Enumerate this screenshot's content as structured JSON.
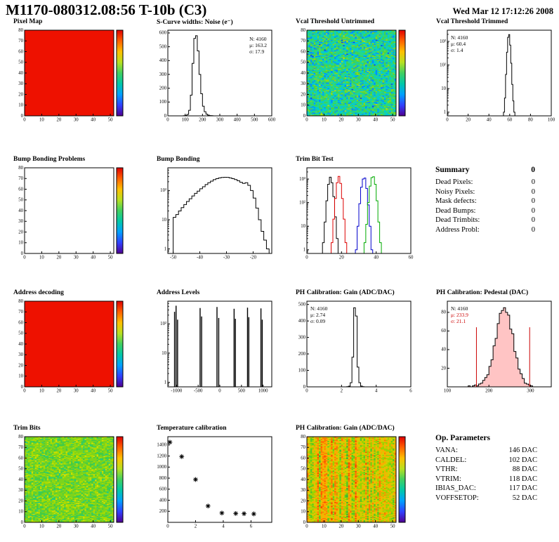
{
  "header": {
    "title": "M1170-080312.08:56 T-10b (C3)",
    "datetime": "Wed Mar 12 17:12:26 2008"
  },
  "summary": {
    "title": "Summary",
    "total": "0",
    "rows": [
      {
        "label": "Dead Pixels:",
        "value": "0"
      },
      {
        "label": "Noisy Pixels:",
        "value": "0"
      },
      {
        "label": "Mask defects:",
        "value": "0"
      },
      {
        "label": "Dead Bumps:",
        "value": "0"
      },
      {
        "label": "Dead Trimbits:",
        "value": "0"
      },
      {
        "label": "Address Probl:",
        "value": "0"
      }
    ]
  },
  "op_parameters": {
    "title": "Op. Parameters",
    "rows": [
      {
        "label": "VANA:",
        "value": "146 DAC"
      },
      {
        "label": "CALDEL:",
        "value": "102 DAC"
      },
      {
        "label": "VTHR:",
        "value": "88 DAC"
      },
      {
        "label": "VTRIM:",
        "value": "118 DAC"
      },
      {
        "label": "IBIAS_DAC:",
        "value": "117 DAC"
      },
      {
        "label": "VOFFSETOP:",
        "value": "52 DAC"
      }
    ]
  },
  "palette_rainbow": [
    "#500090",
    "#3040ff",
    "#00a0ff",
    "#00c8a8",
    "#40d060",
    "#b8e020",
    "#ffc000",
    "#ff6000",
    "#e00000"
  ],
  "chart_data": [
    {
      "id": "pixel-map",
      "type": "heatmap",
      "title": "Pixel Map",
      "xlim": [
        0,
        52
      ],
      "ylim": [
        0,
        80
      ],
      "xticks": [
        0,
        10,
        20,
        30,
        40,
        50
      ],
      "yticks": [
        0,
        10,
        20,
        30,
        40,
        50,
        60,
        70,
        80
      ],
      "colorbar": true,
      "fill": "uniform",
      "color": "#ee1100",
      "nx": 52,
      "ny": 80
    },
    {
      "id": "scurve-noise",
      "type": "histogram",
      "title": "S-Curve widths: Noise (e⁻)",
      "xlim": [
        0,
        600
      ],
      "ylim": [
        0,
        620
      ],
      "xticks": [
        0,
        100,
        200,
        300,
        400,
        500,
        600
      ],
      "yticks": [
        0,
        100,
        200,
        300,
        400,
        500,
        600
      ],
      "ylog": false,
      "line_color": "#000000",
      "bins": {
        "x0": 90,
        "dx": 10,
        "counts": [
          1,
          3,
          10,
          40,
          150,
          380,
          560,
          580,
          470,
          300,
          160,
          70,
          30,
          12,
          5,
          2,
          1
        ]
      },
      "stats": [
        {
          "text": "N: 4160",
          "color": "#000000"
        },
        {
          "text": "μ: 163.2",
          "color": "#000000"
        },
        {
          "text": "σ: 17.9",
          "color": "#000000"
        }
      ]
    },
    {
      "id": "vcal-untrimmed",
      "type": "heatmap",
      "title": "Vcal Threshold Untrimmed",
      "xlim": [
        0,
        52
      ],
      "ylim": [
        0,
        80
      ],
      "xticks": [
        0,
        10,
        20,
        30,
        40,
        50
      ],
      "yticks": [
        0,
        10,
        20,
        30,
        40,
        50,
        60,
        70,
        80
      ],
      "colorbar": true,
      "fill": "random",
      "seed": 11,
      "base": 0.1,
      "noise": 0.8,
      "nx": 52,
      "ny": 80,
      "palette": [
        "#1840e0",
        "#0090ff",
        "#00c8d8",
        "#20d890",
        "#44d44c",
        "#86d81e",
        "#c8e000"
      ]
    },
    {
      "id": "vcal-trimmed",
      "type": "histogram",
      "title": "Vcal Threshold Trimmed",
      "xlim": [
        0,
        100
      ],
      "ylim": [
        0.7,
        3000
      ],
      "xticks": [
        0,
        20,
        40,
        60,
        80,
        100
      ],
      "yticks": [
        1,
        10,
        100,
        1000
      ],
      "ylog": true,
      "line_color": "#000000",
      "bins": {
        "x0": 54,
        "dx": 1,
        "counts": [
          1,
          4,
          40,
          350,
          1500,
          1950,
          700,
          120,
          15,
          3,
          1
        ]
      },
      "stats": [
        {
          "text": "N: 4160",
          "color": "#000000"
        },
        {
          "text": "μ: 60.4",
          "color": "#000000"
        },
        {
          "text": "σ:  1.4",
          "color": "#000000"
        }
      ]
    },
    {
      "id": "bump-problems",
      "type": "heatmap",
      "title": "Bump Bonding Problems",
      "xlim": [
        0,
        52
      ],
      "ylim": [
        0,
        80
      ],
      "xticks": [
        0,
        10,
        20,
        30,
        40,
        50
      ],
      "yticks": [
        0,
        10,
        20,
        30,
        40,
        50,
        60,
        70,
        80
      ],
      "colorbar": true,
      "fill": "none",
      "nx": 52,
      "ny": 80
    },
    {
      "id": "bump-bonding",
      "type": "histogram",
      "title": "Bump Bonding",
      "xlim": [
        -52,
        -13
      ],
      "ylim": [
        0.7,
        600
      ],
      "xticks": [
        -50,
        -40,
        -30,
        -20
      ],
      "yticks": [
        1,
        10,
        100
      ],
      "ylog": true,
      "line_color": "#000000",
      "bins": {
        "x0": -50,
        "dx": 1,
        "counts": [
          12,
          15,
          20,
          26,
          33,
          42,
          52,
          65,
          80,
          95,
          115,
          135,
          160,
          185,
          210,
          235,
          255,
          270,
          280,
          285,
          283,
          270,
          255,
          238,
          215,
          192,
          175,
          185,
          150,
          100,
          55,
          25,
          10,
          4,
          2,
          1
        ]
      }
    },
    {
      "id": "trim-bit-test",
      "type": "multi_histogram",
      "title": "Trim Bit Test",
      "xlim": [
        0,
        60
      ],
      "ylim": [
        0.7,
        3000
      ],
      "xticks": [
        0,
        20,
        40,
        60
      ],
      "yticks": [
        1,
        10,
        100,
        1000
      ],
      "ylog": true,
      "series": [
        {
          "color": "#000000",
          "x0": 9,
          "dx": 1,
          "counts": [
            2,
            15,
            120,
            600,
            1200,
            700,
            180,
            25,
            3
          ]
        },
        {
          "color": "#dd0000",
          "x0": 14,
          "dx": 1,
          "counts": [
            2,
            20,
            150,
            700,
            1300,
            650,
            150,
            20,
            2
          ]
        },
        {
          "color": "#0000cc",
          "x0": 28,
          "dx": 1,
          "counts": [
            1,
            10,
            90,
            450,
            1000,
            1100,
            400,
            80,
            10,
            1
          ]
        },
        {
          "color": "#00aa00",
          "x0": 33,
          "dx": 1,
          "counts": [
            2,
            12,
            100,
            500,
            1150,
            1250,
            600,
            120,
            15,
            2
          ]
        }
      ]
    },
    {
      "id": "address-decoding",
      "type": "heatmap",
      "title": "Address decoding",
      "xlim": [
        0,
        52
      ],
      "ylim": [
        0,
        80
      ],
      "xticks": [
        0,
        10,
        20,
        30,
        40,
        50
      ],
      "yticks": [
        0,
        10,
        20,
        30,
        40,
        50,
        60,
        70,
        80
      ],
      "colorbar": true,
      "fill": "uniform",
      "color": "#ee1100",
      "nx": 52,
      "ny": 80
    },
    {
      "id": "address-levels",
      "type": "spikes",
      "title": "Address Levels",
      "xlim": [
        -1200,
        1200
      ],
      "ylim": [
        0.7,
        600
      ],
      "xticks": [
        -1000,
        -500,
        0,
        500,
        1000
      ],
      "yticks": [
        1,
        10,
        100
      ],
      "ylog": true,
      "spikes": [
        [
          -1045,
          260
        ],
        [
          -1010,
          420
        ],
        [
          -975,
          140
        ],
        [
          -455,
          350
        ],
        [
          -420,
          180
        ],
        [
          -65,
          380
        ],
        [
          -25,
          160
        ],
        [
          330,
          330
        ],
        [
          360,
          150
        ],
        [
          640,
          360
        ],
        [
          670,
          170
        ],
        [
          950,
          340
        ],
        [
          980,
          140
        ]
      ]
    },
    {
      "id": "ph-gain-hist",
      "type": "histogram",
      "title": "PH Calibration: Gain (ADC/DAC)",
      "xlim": [
        0,
        6
      ],
      "ylim": [
        0,
        520
      ],
      "xticks": [
        0,
        2,
        4,
        6
      ],
      "yticks": [
        0,
        100,
        200,
        300,
        400,
        500
      ],
      "ylog": false,
      "line_color": "#000000",
      "bins": {
        "x0": 2.3,
        "dx": 0.1,
        "counts": [
          1,
          4,
          25,
          180,
          480,
          430,
          120,
          25,
          5,
          1
        ]
      },
      "stats": [
        {
          "text": "N: 4160",
          "color": "#000000"
        },
        {
          "text": "μ: 2.74",
          "color": "#000000"
        },
        {
          "text": "σ: 0.09",
          "color": "#000000"
        }
      ]
    },
    {
      "id": "ph-pedestal",
      "type": "histogram",
      "title": "PH Calibration: Pedestal (DAC)",
      "xlim": [
        100,
        350
      ],
      "ylim": [
        0,
        92
      ],
      "xticks": [
        100,
        200,
        300
      ],
      "yticks": [
        20,
        40,
        60,
        80
      ],
      "ylog": false,
      "line_color": "#000000",
      "fill_color": "rgba(255,60,60,0.30)",
      "vlines": [
        {
          "x": 170,
          "h": 64,
          "color": "#cc0000"
        },
        {
          "x": 298,
          "h": 64,
          "color": "#cc0000"
        }
      ],
      "bins": {
        "x0": 150,
        "dx": 5,
        "counts": [
          1,
          0,
          1,
          2,
          1,
          3,
          4,
          7,
          10,
          13,
          22,
          29,
          44,
          52,
          68,
          79,
          82,
          85,
          80,
          77,
          62,
          57,
          38,
          31,
          19,
          14,
          9,
          4,
          3,
          2,
          1,
          0
        ]
      },
      "stats": [
        {
          "text": "N: 4160",
          "color": "#000000"
        },
        {
          "text": "μ: 233.9",
          "color": "#cc0000"
        },
        {
          "text": "σ: 21.1",
          "color": "#cc0000"
        }
      ]
    },
    {
      "id": "trim-bits-map",
      "type": "heatmap",
      "title": "Trim Bits",
      "xlim": [
        0,
        52
      ],
      "ylim": [
        0,
        80
      ],
      "xticks": [
        0,
        10,
        20,
        30,
        40,
        50
      ],
      "yticks": [
        0,
        10,
        20,
        30,
        40,
        50,
        60,
        70,
        80
      ],
      "colorbar": true,
      "fill": "random",
      "seed": 23,
      "base": 0.2,
      "noise": 0.75,
      "nx": 52,
      "ny": 80,
      "palette": [
        "#00b8b8",
        "#20cc80",
        "#44cc44",
        "#7cd41c",
        "#aadc00",
        "#d8e000"
      ]
    },
    {
      "id": "temp-calibration",
      "type": "scatter",
      "title": "Temperature calibration",
      "xlim": [
        0,
        7.5
      ],
      "ylim": [
        0,
        1550
      ],
      "xticks": [
        0,
        2,
        4,
        6
      ],
      "yticks": [
        200,
        400,
        600,
        800,
        1000,
        1200,
        1400
      ],
      "marker": "asterisk",
      "marker_color": "#000000",
      "points": [
        [
          0.15,
          1450
        ],
        [
          1,
          1190
        ],
        [
          2,
          775
        ],
        [
          2.9,
          295
        ],
        [
          3.9,
          168
        ],
        [
          4.9,
          160
        ],
        [
          5.5,
          157
        ],
        [
          6.2,
          153
        ]
      ]
    },
    {
      "id": "ph-gain-map",
      "type": "heatmap",
      "title": "PH Calibration: Gain (ADC/DAC)",
      "xlim": [
        0,
        52
      ],
      "ylim": [
        0,
        80
      ],
      "xticks": [
        0,
        10,
        20,
        30,
        40,
        50
      ],
      "yticks": [
        0,
        10,
        20,
        30,
        40,
        50,
        60,
        70,
        80
      ],
      "colorbar": true,
      "fill": "columns",
      "seed": 31,
      "base": 0.3,
      "colw": 0.45,
      "noise": 0.4,
      "nx": 52,
      "ny": 80,
      "palette": [
        "#22aa44",
        "#55c822",
        "#99d400",
        "#d8cc00",
        "#ffaa00",
        "#ff7700",
        "#ff4400"
      ]
    }
  ]
}
